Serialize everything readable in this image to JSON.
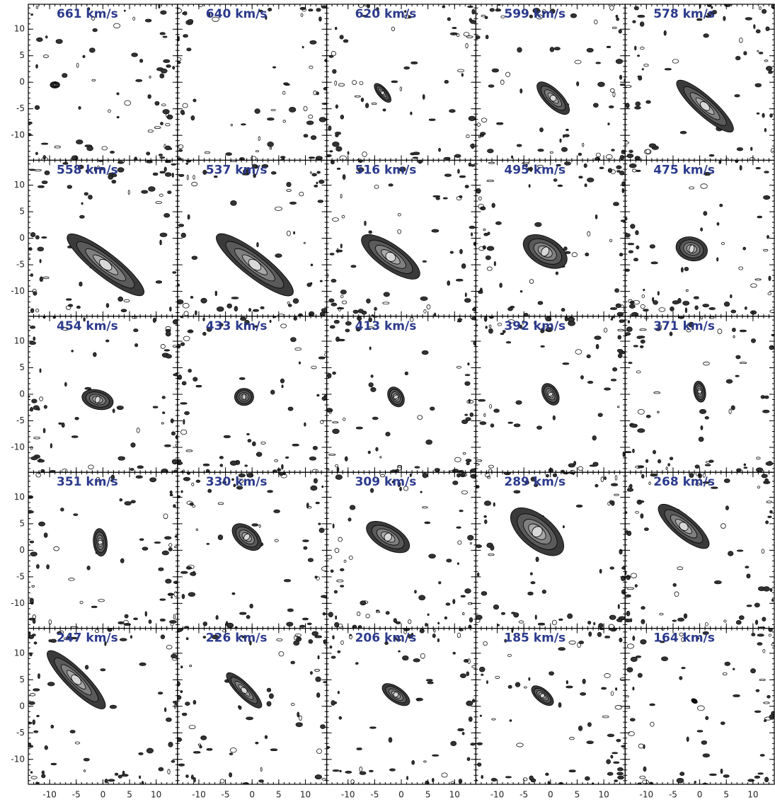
{
  "chart_data": {
    "type": "contour",
    "panels": [
      {
        "title": "661 km/s"
      },
      {
        "title": "640 km/s"
      },
      {
        "title": "620 km/s"
      },
      {
        "title": "599 km/s"
      },
      {
        "title": "578 km/s"
      },
      {
        "title": "558 km/s"
      },
      {
        "title": "537 km/s"
      },
      {
        "title": "516 km/s"
      },
      {
        "title": "495 km/s"
      },
      {
        "title": "475 km/s"
      },
      {
        "title": "454 km/s"
      },
      {
        "title": "433 km/s"
      },
      {
        "title": "413 km/s"
      },
      {
        "title": "392 km/s"
      },
      {
        "title": "371 km/s"
      },
      {
        "title": "351 km/s"
      },
      {
        "title": "330 km/s"
      },
      {
        "title": "309 km/s"
      },
      {
        "title": "289 km/s"
      },
      {
        "title": "268 km/s"
      },
      {
        "title": "247 km/s"
      },
      {
        "title": "226 km/s"
      },
      {
        "title": "206 km/s"
      },
      {
        "title": "185 km/s"
      },
      {
        "title": "164 km/s"
      }
    ],
    "xlim": [
      -14,
      14
    ],
    "ylim": [
      -14.7,
      14.7
    ],
    "xticks": [
      -10,
      -5,
      0,
      5,
      10
    ],
    "yticks": [
      -10,
      -5,
      0,
      5,
      10
    ]
  }
}
